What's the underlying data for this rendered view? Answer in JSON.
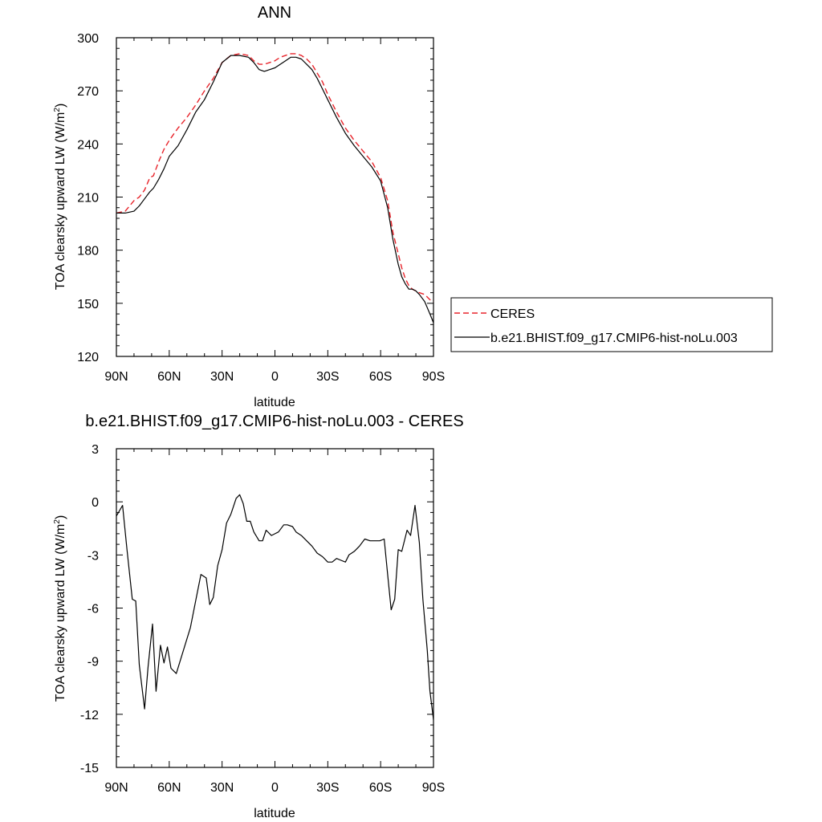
{
  "chart_data": [
    {
      "type": "line",
      "title": "ANN",
      "xlabel": "latitude",
      "ylabel_main": "TOA clearsky upward LW (W/m",
      "ylabel_sup": "2",
      "ylabel_tail": ")",
      "xlim": [
        90,
        -90
      ],
      "ylim": [
        120,
        300
      ],
      "xticks": [
        90,
        60,
        30,
        0,
        -30,
        -60,
        -90
      ],
      "xticklabels": [
        "90N",
        "60N",
        "30N",
        "0",
        "30S",
        "60S",
        "90S"
      ],
      "yticks": [
        120,
        150,
        180,
        210,
        240,
        270,
        300
      ],
      "yticklabels": [
        "120",
        "150",
        "180",
        "210",
        "240",
        "270",
        "300"
      ],
      "grid": false,
      "legend_position": "right",
      "series": [
        {
          "name": "CERES",
          "color": "#e8242b",
          "dash": "dashed",
          "x": [
            90,
            85,
            80,
            77,
            74,
            71,
            69,
            66,
            63,
            60,
            55,
            50,
            45,
            40,
            35,
            30,
            25,
            20,
            15,
            12,
            9,
            6,
            3,
            0,
            -3,
            -6,
            -9,
            -12,
            -15,
            -18,
            -21,
            -24,
            -27,
            -30,
            -35,
            -40,
            -45,
            -50,
            -55,
            -60,
            -64,
            -67,
            -70,
            -72,
            -74,
            -76,
            -78,
            -80,
            -82,
            -85,
            -88,
            -90
          ],
          "y": [
            201,
            202,
            208,
            210,
            214,
            221,
            222,
            230,
            237,
            242,
            249,
            255,
            262,
            270,
            277,
            286,
            290,
            291,
            290,
            287,
            285,
            285,
            286,
            287,
            289,
            290,
            291,
            291,
            290,
            288,
            285,
            280,
            275,
            268,
            258,
            249,
            242,
            236,
            230,
            221,
            208,
            190,
            178,
            170,
            164,
            160,
            158,
            157,
            156,
            155,
            152,
            151
          ]
        },
        {
          "name": "b.e21.BHIST.f09_g17.CMIP6-hist-noLu.003",
          "color": "#000000",
          "dash": "solid",
          "x": [
            90,
            85,
            80,
            77,
            74,
            71,
            69,
            66,
            63,
            60,
            55,
            50,
            45,
            40,
            35,
            30,
            25,
            20,
            15,
            12,
            9,
            6,
            3,
            0,
            -3,
            -6,
            -9,
            -12,
            -15,
            -18,
            -21,
            -24,
            -27,
            -30,
            -35,
            -40,
            -45,
            -50,
            -55,
            -60,
            -64,
            -67,
            -70,
            -72,
            -74,
            -76,
            -78,
            -80,
            -82,
            -85,
            -88,
            -90
          ],
          "y": [
            201,
            201,
            202,
            205,
            209,
            213,
            215,
            220,
            226,
            233,
            239,
            248,
            258,
            265,
            275,
            286,
            290,
            290,
            289,
            286,
            282,
            281,
            282,
            283,
            285,
            287,
            289,
            289,
            288,
            285,
            282,
            277,
            271,
            265,
            255,
            246,
            239,
            233,
            227,
            219,
            204,
            186,
            172,
            165,
            161,
            158,
            158,
            157,
            155,
            151,
            144,
            139
          ]
        }
      ]
    },
    {
      "type": "line",
      "title": "b.e21.BHIST.f09_g17.CMIP6-hist-noLu.003 - CERES",
      "xlabel": "latitude",
      "ylabel_main": "TOA clearsky upward LW (W/m",
      "ylabel_sup": "2",
      "ylabel_tail": ")",
      "xlim": [
        90,
        -90
      ],
      "ylim": [
        -15,
        3
      ],
      "xticks": [
        90,
        60,
        30,
        0,
        -30,
        -60,
        -90
      ],
      "xticklabels": [
        "90N",
        "60N",
        "30N",
        "0",
        "30S",
        "60S",
        "90S"
      ],
      "yticks": [
        -15,
        -12,
        -9,
        -6,
        -3,
        0,
        3
      ],
      "yticklabels": [
        "-15",
        "-12",
        "-9",
        "-6",
        "-3",
        "0",
        "3"
      ],
      "grid": false,
      "series": [
        {
          "name": "",
          "color": "#000000",
          "dash": "solid",
          "x": [
            90,
            86.5,
            84,
            81,
            79,
            77,
            74,
            72,
            69.5,
            67.5,
            65,
            63,
            61,
            59,
            56,
            52,
            48,
            44,
            42,
            39,
            37,
            35,
            32.5,
            30,
            27.5,
            25,
            22,
            20,
            18,
            16,
            14,
            12,
            9,
            7,
            5,
            2,
            0,
            -2,
            -5,
            -7,
            -10,
            -12,
            -15,
            -18,
            -21,
            -24,
            -27,
            -30,
            -32.5,
            -35,
            -37.5,
            -40,
            -42,
            -45,
            -48,
            -51,
            -54,
            -57,
            -59.5,
            -62,
            -64,
            -66,
            -68,
            -70,
            -72,
            -75,
            -77,
            -79.5,
            -82,
            -84,
            -86.5,
            -88,
            -90
          ],
          "y": [
            -0.8,
            -0.2,
            -2.7,
            -5.5,
            -5.6,
            -9.2,
            -11.7,
            -9.3,
            -6.9,
            -10.7,
            -8.1,
            -9.1,
            -8.2,
            -9.4,
            -9.7,
            -8.4,
            -7.1,
            -5.1,
            -4.1,
            -4.3,
            -5.8,
            -5.4,
            -3.6,
            -2.7,
            -1.2,
            -0.7,
            0.2,
            0.4,
            -0.1,
            -1.1,
            -1.1,
            -1.7,
            -2.2,
            -2.2,
            -1.6,
            -1.9,
            -1.8,
            -1.7,
            -1.3,
            -1.3,
            -1.4,
            -1.7,
            -1.9,
            -2.2,
            -2.5,
            -2.9,
            -3.1,
            -3.4,
            -3.4,
            -3.2,
            -3.3,
            -3.4,
            -3.0,
            -2.8,
            -2.5,
            -2.1,
            -2.2,
            -2.2,
            -2.2,
            -2.1,
            -4.1,
            -6.1,
            -5.5,
            -2.7,
            -2.8,
            -1.6,
            -1.9,
            -0.2,
            -2.3,
            -5.5,
            -8.4,
            -10.7,
            -12.3
          ]
        }
      ]
    }
  ]
}
